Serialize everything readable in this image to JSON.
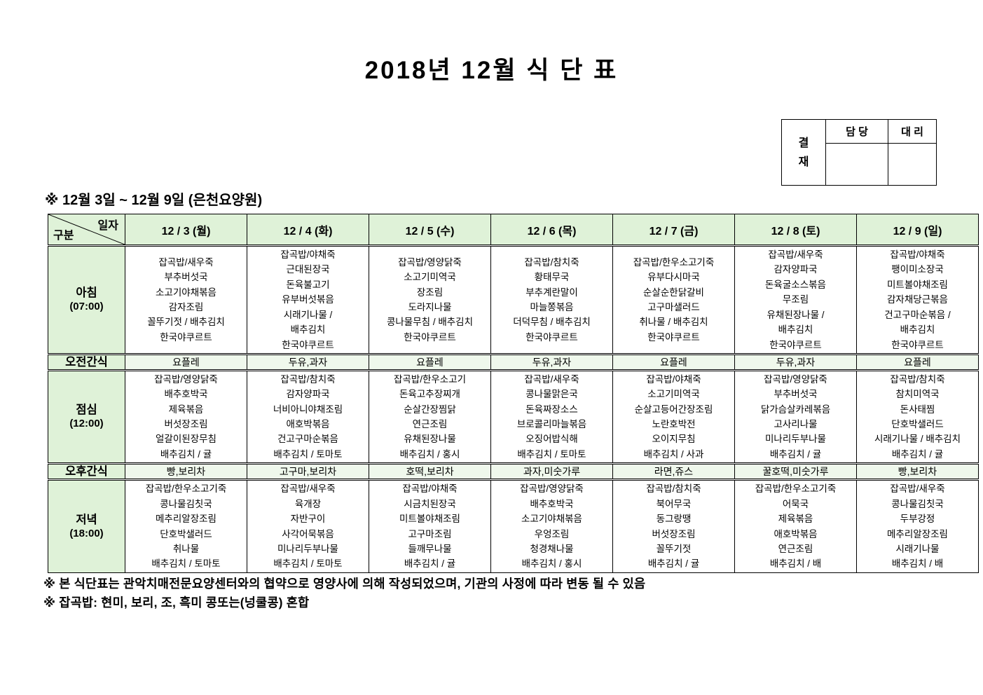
{
  "title": "2018년 12월 식 단 표",
  "subtitle": "※ 12월 3일 ~ 12월 9일 (은천요양원)",
  "approval": {
    "stamp_label": "결재",
    "columns": [
      "담 당",
      "대 리"
    ]
  },
  "colors": {
    "header_green": "#dff2d8",
    "snack_green": "#eff8ec",
    "border": "#000000"
  },
  "table": {
    "corner": {
      "top": "일자",
      "bottom": "구분"
    },
    "days": [
      "12 / 3 (월)",
      "12 / 4 (화)",
      "12 / 5 (수)",
      "12 / 6 (목)",
      "12 / 7 (금)",
      "12 / 8 (토)",
      "12 / 9 (일)"
    ],
    "rows": [
      {
        "id": "breakfast",
        "kind": "meal",
        "label": "아침",
        "time": "(07:00)",
        "days": [
          [
            "잡곡밥/새우죽",
            "부추버섯국",
            "소고기야채볶음",
            "감자조림",
            "꼴뚜기젓 / 배추김치",
            "한국야쿠르트"
          ],
          [
            "잡곡밥/야채죽",
            "근대된장국",
            "돈육불고기",
            "유부버섯볶음",
            "시래기나물 /",
            "배추김치",
            "한국야쿠르트"
          ],
          [
            "잡곡밥/영양닭죽",
            "소고기미역국",
            "장조림",
            "도라지나물",
            "콩나물무침 / 배추김치",
            "한국야쿠르트"
          ],
          [
            "잡곡밥/참치죽",
            "황태무국",
            "부추계란말이",
            "마늘쫑볶음",
            "더덕무침 / 배추김치",
            "한국야쿠르트"
          ],
          [
            "잡곡밥/한우소고기죽",
            "유부다시마국",
            "순살순한닭갈비",
            "고구마샐러드",
            "취나물 / 배추김치",
            "한국야쿠르트"
          ],
          [
            "잡곡밥/새우죽",
            "감자양파국",
            "돈육굴소스볶음",
            "무조림",
            "유채된장나물 /",
            "배추김치",
            "한국야쿠르트"
          ],
          [
            "잡곡밥/야채죽",
            "팽이미소장국",
            "미트볼야채조림",
            "감자채당근볶음",
            "건고구마순볶음 /",
            "배추김치",
            "한국야쿠르트"
          ]
        ]
      },
      {
        "id": "am-snack",
        "kind": "snack",
        "label": "오전간식",
        "days": [
          "요플레",
          "두유,과자",
          "요플레",
          "두유,과자",
          "요플레",
          "두유,과자",
          "요플레"
        ]
      },
      {
        "id": "lunch",
        "kind": "meal",
        "label": "점심",
        "time": "(12:00)",
        "days": [
          [
            "잡곡밥/영양닭죽",
            "배추호박국",
            "제육볶음",
            "버섯장조림",
            "얼갈이된장무침",
            "배추김치 / 귤"
          ],
          [
            "잡곡밥/참치죽",
            "감자양파국",
            "너비아니야채조림",
            "애호박볶음",
            "건고구마순볶음",
            "배추김치 / 토마토"
          ],
          [
            "잡곡밥/한우소고기",
            "돈육고추장찌개",
            "순살간장찜닭",
            "연근조림",
            "유채된장나물",
            "배추김치 / 홍시"
          ],
          [
            "잡곡밥/새우죽",
            "콩나물맑은국",
            "돈육짜장소스",
            "브로콜리마늘볶음",
            "오징어밥식해",
            "배추김치 / 토마토"
          ],
          [
            "잡곡밥/야채죽",
            "소고기미역국",
            "순살고등어간장조림",
            "노란호박전",
            "오이지무침",
            "배추김치 / 사과"
          ],
          [
            "잡곡밥/영양닭죽",
            "부추버섯국",
            "닭가슴살카레볶음",
            "고사리나물",
            "미나리두부나물",
            "배추김치 / 귤"
          ],
          [
            "잡곡밥/참치죽",
            "참치미역국",
            "돈사태찜",
            "단호박샐러드",
            "시래기나물 / 배추김치",
            "배추김치 / 귤"
          ]
        ]
      },
      {
        "id": "pm-snack",
        "kind": "snack",
        "label": "오후간식",
        "days": [
          "빵,보리차",
          "고구마,보리차",
          "호떡,보리차",
          "과자,미숫가루",
          "라면,쥬스",
          "꿀호떡,미숫가루",
          "빵,보리차"
        ]
      },
      {
        "id": "dinner",
        "kind": "meal",
        "label": "저녁",
        "time": "(18:00)",
        "days": [
          [
            "잡곡밥/한우소고기죽",
            "콩나물김칫국",
            "메추리알장조림",
            "단호박샐러드",
            "취나물",
            "배추김치 / 토마토"
          ],
          [
            "잡곡밥/새우죽",
            "육개장",
            "자반구이",
            "사각어묵볶음",
            "미나리두부나물",
            "배추김치 / 토마토"
          ],
          [
            "잡곡밥/야채죽",
            "시금치된장국",
            "미트볼야채조림",
            "고구마조림",
            "들깨무나물",
            "배추김치 / 귤"
          ],
          [
            "잡곡밥/영양닭죽",
            "배추호박국",
            "소고기야채볶음",
            "우엉조림",
            "청경채나물",
            "배추김치 / 홍시"
          ],
          [
            "잡곡밥/참치죽",
            "북어무국",
            "동그랑땡",
            "버섯장조림",
            "꼴뚜기젓",
            "배추김치 / 귤"
          ],
          [
            "잡곡밥/한우소고기죽",
            "어묵국",
            "제육볶음",
            "애호박볶음",
            "연근조림",
            "배추김치 / 배"
          ],
          [
            "잡곡밥/새우죽",
            "콩나물김칫국",
            "두부강정",
            "메추리알장조림",
            "시래기나물",
            "배추김치 / 배"
          ]
        ]
      }
    ]
  },
  "footnotes": [
    "※ 본 식단표는 관악치매전문요양센터와의 협약으로 영양사에 의해 작성되었으며, 기관의 사정에 따라 변동 될 수 있음",
    "※ 잡곡밥: 현미, 보리, 조, 흑미 콩또는(넝쿨콩) 혼합"
  ]
}
